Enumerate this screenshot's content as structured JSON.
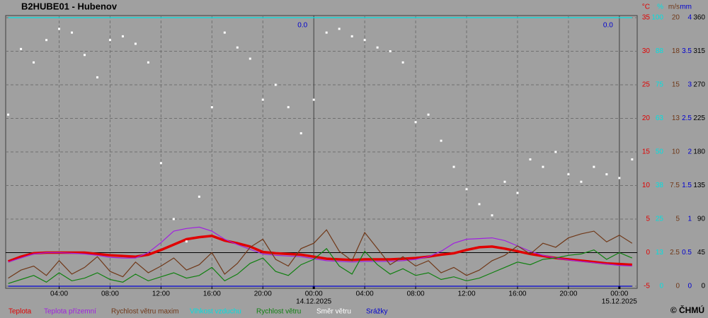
{
  "chart_data": {
    "type": "line",
    "title": "B2HUBE01 - Hubenov",
    "footer": "© ČHMÚ",
    "x": [
      0,
      1,
      2,
      3,
      4,
      5,
      6,
      7,
      8,
      9,
      10,
      11,
      12,
      13,
      14,
      15,
      16,
      17,
      18,
      19,
      20,
      21,
      22,
      23,
      24,
      25,
      26,
      27,
      28,
      29,
      30,
      31,
      32,
      33,
      34,
      35,
      36,
      37,
      38,
      39,
      40,
      41,
      42,
      43,
      44,
      45,
      46,
      47,
      48,
      49
    ],
    "xlim": [
      -0.2,
      49.4
    ],
    "xticks": [
      {
        "value": 4,
        "label": "04:00"
      },
      {
        "value": 8,
        "label": "08:00"
      },
      {
        "value": 12,
        "label": "12:00"
      },
      {
        "value": 16,
        "label": "16:00"
      },
      {
        "value": 20,
        "label": "20:00"
      },
      {
        "value": 24,
        "label": "00:00"
      },
      {
        "value": 28,
        "label": "04:00"
      },
      {
        "value": 32,
        "label": "08:00"
      },
      {
        "value": 36,
        "label": "12:00"
      },
      {
        "value": 40,
        "label": "16:00"
      },
      {
        "value": 44,
        "label": "20:00"
      },
      {
        "value": 48,
        "label": "00:00"
      }
    ],
    "date_labels": [
      {
        "value": 24,
        "label": "14.12.2025"
      },
      {
        "value": 48,
        "label": "15.12.2025"
      }
    ],
    "grid": true,
    "axes": [
      {
        "unit": "°C",
        "color": "#e00000",
        "lim": [
          -5,
          35
        ],
        "ticks": [
          -5,
          0,
          5,
          10,
          15,
          20,
          25,
          30,
          35
        ]
      },
      {
        "unit": "%",
        "color": "#00e0e0",
        "lim": [
          0,
          100
        ],
        "ticks": [
          0,
          {
            "value": 12.5,
            "label": "13"
          },
          25,
          {
            "value": 37.5,
            "label": "38"
          },
          50,
          {
            "value": 62.5,
            "label": "63"
          },
          75,
          {
            "value": 87.5,
            "label": "88"
          },
          100
        ]
      },
      {
        "unit": "m/s",
        "color": "#703818",
        "lim": [
          0,
          20
        ],
        "ticks": [
          0,
          2.5,
          5,
          7.5,
          10,
          {
            "value": 12.5,
            "label": "13"
          },
          15,
          {
            "value": 17.5,
            "label": "18"
          },
          20
        ]
      },
      {
        "unit": "mm",
        "color": "#0000d0",
        "lim": [
          0,
          4
        ],
        "ticks": [
          0,
          0.5,
          1,
          1.5,
          2,
          2.5,
          3,
          3.5,
          4
        ]
      },
      {
        "color": "#000000",
        "lim": [
          0,
          360
        ],
        "ticks": [
          0,
          45,
          90,
          135,
          180,
          225,
          270,
          315,
          360
        ]
      }
    ],
    "precip_totals": {
      "x": [
        23.5,
        47.5
      ],
      "values": [
        0,
        0
      ],
      "value_labels": [
        "0.0",
        "0.0"
      ],
      "color": "#0000d0"
    },
    "series": [
      {
        "name": "Teplota",
        "color": "#e00000",
        "axis": "°C",
        "style": "thick",
        "values": [
          -1.3,
          -0.6,
          -0.1,
          0,
          0,
          0,
          0,
          -0.2,
          -0.4,
          -0.5,
          -0.6,
          -0.3,
          0.4,
          1.2,
          2,
          2.3,
          2.5,
          1.8,
          1.4,
          0.9,
          0.1,
          -0.1,
          -0.2,
          -0.3,
          -0.6,
          -0.9,
          -1,
          -1.1,
          -1,
          -1,
          -1,
          -0.9,
          -0.8,
          -0.6,
          -0.3,
          -0.1,
          0.4,
          0.8,
          0.9,
          0.6,
          0.2,
          -0.2,
          -0.5,
          -0.8,
          -1,
          -1.2,
          -1.4,
          -1.6,
          -1.7,
          -1.8
        ]
      },
      {
        "name": "Teplota přízemní",
        "color": "#a020e0",
        "axis": "°C",
        "style": "line",
        "values": [
          -1.4,
          -0.8,
          -0.2,
          0,
          0,
          -0.1,
          -0.2,
          -0.4,
          -0.7,
          -0.8,
          -0.8,
          0,
          1.5,
          3.2,
          3.6,
          3.8,
          3.2,
          2,
          1.2,
          0.5,
          -0.2,
          -0.4,
          -0.5,
          -0.6,
          -0.9,
          -1.2,
          -1.3,
          -1.4,
          -1.3,
          -1.3,
          -1.3,
          -1.2,
          -1,
          -0.6,
          0.2,
          1.4,
          2,
          2.1,
          2.2,
          1.8,
          1,
          0.2,
          -0.4,
          -0.8,
          -1.1,
          -1.3,
          -1.5,
          -1.7,
          -1.9,
          -2
        ]
      },
      {
        "name": "Rychlost větru maxim",
        "color": "#703818",
        "axis": "m/s",
        "style": "line",
        "values": [
          0.6,
          1.2,
          1.5,
          0.8,
          1.9,
          0.9,
          1.4,
          2.2,
          1.1,
          0.7,
          1.8,
          1,
          1.5,
          2.1,
          1.2,
          1.6,
          2.5,
          0.9,
          1.7,
          2.9,
          3.5,
          2,
          1.5,
          2.8,
          3.2,
          4.2,
          2.6,
          1.9,
          4,
          2.8,
          1.6,
          2.2,
          1.5,
          1.9,
          1,
          1.4,
          0.8,
          1.2,
          1.9,
          2.3,
          3,
          2.4,
          3.2,
          2.9,
          3.6,
          3.9,
          4.1,
          3.3,
          3.8,
          3.2
        ]
      },
      {
        "name": "Vlhkost vzduchu",
        "color": "#00e0e0",
        "axis": "%",
        "style": "line",
        "values": [
          100,
          100,
          100,
          100,
          100,
          100,
          100,
          100,
          100,
          100,
          100,
          100,
          100,
          100,
          100,
          100,
          100,
          100,
          100,
          100,
          100,
          100,
          100,
          100,
          100,
          100,
          100,
          100,
          100,
          100,
          100,
          100,
          100,
          100,
          100,
          100,
          100,
          100,
          100,
          100,
          100,
          100,
          100,
          100,
          100,
          100,
          100,
          100,
          100,
          100
        ]
      },
      {
        "name": "Rychlost větru",
        "color": "#108010",
        "axis": "m/s",
        "style": "line",
        "values": [
          0.2,
          0.5,
          0.8,
          0.3,
          1,
          0.4,
          0.6,
          1,
          0.5,
          0.3,
          0.9,
          0.4,
          0.7,
          1,
          0.6,
          0.8,
          1.4,
          0.4,
          0.9,
          1.7,
          2.1,
          1.1,
          0.8,
          1.6,
          2,
          2.8,
          1.5,
          0.9,
          2.6,
          1.6,
          0.9,
          1.3,
          0.8,
          1,
          0.5,
          0.7,
          0.4,
          0.6,
          1,
          1.4,
          1.8,
          1.6,
          2,
          2.1,
          2.3,
          2.4,
          2.7,
          2,
          2.5,
          2.1
        ]
      },
      {
        "name": "Směr větru",
        "color": "#ffffff",
        "axis": "dir",
        "style": "dots",
        "values": [
          230,
          318,
          300,
          330,
          345,
          340,
          310,
          280,
          330,
          335,
          325,
          300,
          165,
          90,
          60,
          120,
          240,
          340,
          320,
          305,
          250,
          270,
          240,
          205,
          250,
          340,
          345,
          335,
          330,
          320,
          315,
          300,
          220,
          230,
          195,
          160,
          130,
          110,
          95,
          140,
          125,
          170,
          160,
          180,
          150,
          140,
          160,
          150,
          145,
          170
        ]
      },
      {
        "name": "Srážky",
        "color": "#0000d0",
        "axis": "mm",
        "style": "line",
        "values": [
          0,
          0,
          0,
          0,
          0,
          0,
          0,
          0,
          0,
          0,
          0,
          0,
          0,
          0,
          0,
          0,
          0,
          0,
          0,
          0,
          0,
          0,
          0,
          0,
          0,
          0,
          0,
          0,
          0,
          0,
          0,
          0,
          0,
          0,
          0,
          0,
          0,
          0,
          0,
          0,
          0,
          0,
          0,
          0,
          0,
          0,
          0,
          0,
          0,
          0
        ]
      }
    ]
  }
}
